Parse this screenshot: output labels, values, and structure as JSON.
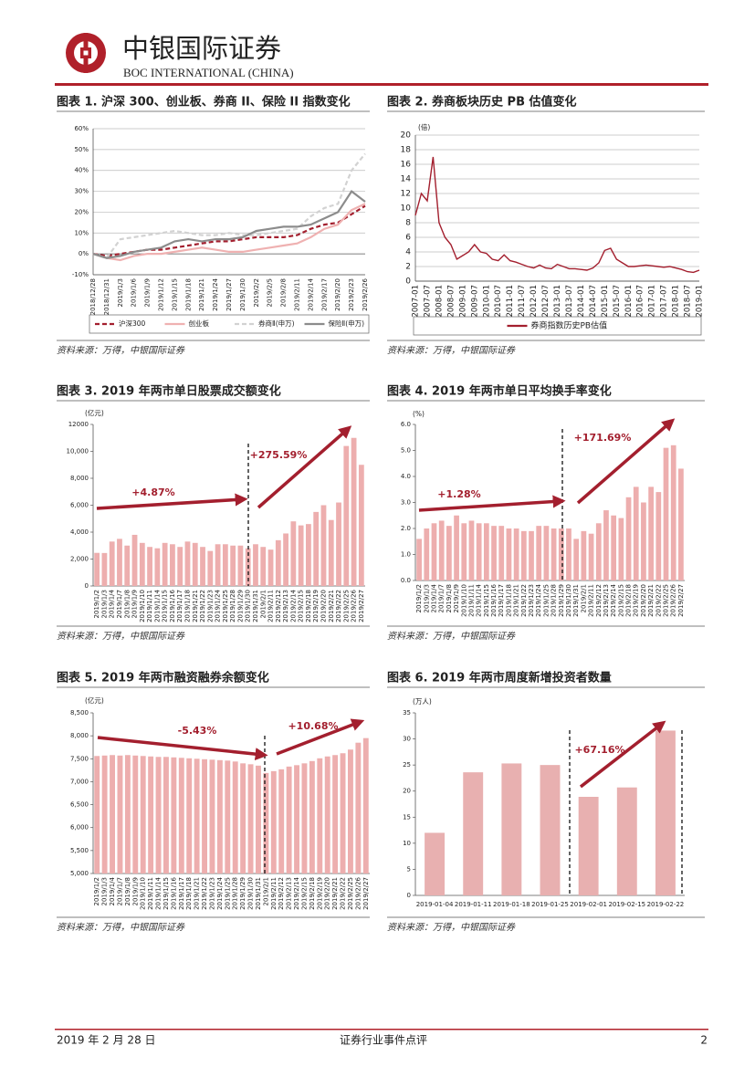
{
  "header": {
    "company": "中银国际证券",
    "company_en": "BOC INTERNATIONAL (CHINA)"
  },
  "chart_data": [
    {
      "type": "line",
      "caption": "图表 1. 沪深 300、创业板、券商 II、保险 II 指数变化",
      "source": "资料来源：万得，中银国际证券",
      "categories": [
        "2018/12/28",
        "2018/12/31",
        "2019/1/3",
        "2019/1/6",
        "2019/1/9",
        "2019/1/12",
        "2019/1/15",
        "2019/1/18",
        "2019/1/21",
        "2019/1/24",
        "2019/1/27",
        "2019/1/30",
        "2019/2/2",
        "2019/2/5",
        "2019/2/8",
        "2019/2/11",
        "2019/2/14",
        "2019/2/17",
        "2019/2/20",
        "2019/2/23",
        "2019/2/26"
      ],
      "series": [
        {
          "name": "沪深300",
          "color": "#a31f2e",
          "line_style": "dashed",
          "values": [
            0,
            -1,
            0,
            1,
            2,
            2,
            3,
            4,
            5,
            6,
            6,
            7,
            8,
            8,
            8,
            9,
            12,
            14,
            15,
            19,
            23
          ]
        },
        {
          "name": "创业板",
          "color": "#efb1b1",
          "line_style": "solid",
          "values": [
            0,
            -2,
            -3,
            -1,
            0,
            0,
            1,
            2,
            3,
            2,
            1,
            1,
            2,
            3,
            4,
            5,
            8,
            12,
            14,
            21,
            24
          ]
        },
        {
          "name": "券商Ⅱ(申万)",
          "color": "#d2d2d2",
          "line_style": "dashed",
          "values": [
            0,
            -2,
            7,
            8,
            9,
            10,
            11,
            10,
            9,
            9,
            10,
            9,
            9,
            10,
            11,
            12,
            18,
            22,
            24,
            40,
            48
          ]
        },
        {
          "name": "保险Ⅱ(申万)",
          "color": "#8c8c8c",
          "line_style": "solid",
          "values": [
            0,
            -2,
            -1,
            1,
            2,
            3,
            6,
            7,
            6,
            7,
            7,
            8,
            11,
            12,
            13,
            13,
            14,
            17,
            20,
            30,
            25
          ]
        }
      ],
      "ylim": [
        -10,
        60
      ],
      "yticks": [
        {
          "value": -10,
          "label": "-10%"
        },
        {
          "value": 0,
          "label": "0%"
        },
        {
          "value": 10,
          "label": "10%"
        },
        {
          "value": 20,
          "label": "20%"
        },
        {
          "value": 30,
          "label": "30%"
        },
        {
          "value": 40,
          "label": "40%"
        },
        {
          "value": 50,
          "label": "50%"
        },
        {
          "value": 60,
          "label": "60%"
        }
      ],
      "grid": true,
      "legend": "bottom"
    },
    {
      "type": "line",
      "caption": "图表 2. 券商板块历史 PB 估值变化",
      "source": "资料来源：万得，中银国际证券",
      "unit": "(倍)",
      "categories": [
        "2007-01",
        null,
        "2007-07",
        null,
        "2008-01",
        null,
        "2008-07",
        null,
        "2009-01",
        null,
        "2009-07",
        null,
        "2010-01",
        null,
        "2010-07",
        null,
        "2011-01",
        null,
        "2011-07",
        null,
        "2012-01",
        null,
        "2012-07",
        null,
        "2013-01",
        null,
        "2013-07",
        null,
        "2014-01",
        null,
        "2014-07",
        null,
        "2015-01",
        null,
        "2015-07",
        null,
        "2016-01",
        null,
        "2016-07",
        null,
        "2017-01",
        null,
        "2017-07",
        null,
        "2018-01",
        null,
        "2018-07",
        null,
        "2019-01"
      ],
      "series": [
        {
          "name": "券商指数历史PB估值",
          "color": "#a31f2e",
          "line_style": "solid",
          "values": [
            9,
            12,
            11,
            17,
            8,
            6,
            5,
            3,
            3.5,
            4,
            5,
            4,
            3.8,
            3,
            2.8,
            3.6,
            2.8,
            2.6,
            2.3,
            2,
            1.8,
            2.2,
            1.8,
            1.7,
            2.3,
            2,
            1.7,
            1.7,
            1.6,
            1.5,
            1.8,
            2.5,
            4.2,
            4.5,
            3,
            2.5,
            2,
            2,
            2.1,
            2.2,
            2.1,
            2,
            1.9,
            2,
            1.8,
            1.6,
            1.3,
            1.2,
            1.5
          ]
        }
      ],
      "ylim": [
        0,
        20
      ],
      "yticks": [
        0,
        2,
        4,
        6,
        8,
        10,
        12,
        14,
        16,
        18,
        20
      ],
      "grid": true,
      "legend": "bottom"
    },
    {
      "type": "bar",
      "caption": "图表 3. 2019 年两市单日股票成交额变化",
      "source": "资料来源：万得，中银国际证券",
      "unit": "(亿元)",
      "categories": [
        "2019/1/2",
        "2019/1/3",
        "2019/1/4",
        "2019/1/7",
        "2019/1/8",
        "2019/1/9",
        "2019/1/10",
        "2019/1/11",
        "2019/1/14",
        "2019/1/15",
        "2019/1/16",
        "2019/1/17",
        "2019/1/18",
        "2019/1/21",
        "2019/1/22",
        "2019/1/23",
        "2019/1/24",
        "2019/1/25",
        "2019/1/28",
        "2019/1/29",
        "2019/1/30",
        "2019/1/31",
        "2019/2/1",
        "2019/2/11",
        "2019/2/12",
        "2019/2/13",
        "2019/2/14",
        "2019/2/15",
        "2019/2/18",
        "2019/2/19",
        "2019/2/20",
        "2019/2/21",
        "2019/2/22",
        "2019/2/25",
        "2019/2/26",
        "2019/2/27"
      ],
      "values": [
        2460,
        2450,
        3300,
        3500,
        3000,
        3800,
        3200,
        2900,
        2800,
        3200,
        3100,
        2900,
        3300,
        3200,
        2900,
        2600,
        3100,
        3100,
        3000,
        3000,
        2800,
        3100,
        2900,
        2700,
        3400,
        3900,
        4800,
        4500,
        4600,
        5500,
        6000,
        4900,
        6200,
        10400,
        11000,
        9000
      ],
      "color": "#edaeae",
      "ylim": [
        0,
        12000
      ],
      "yticks": [
        0,
        {
          "value": 2000,
          "label": "2,000"
        },
        {
          "value": 4000,
          "label": "4,000"
        },
        {
          "value": 6000,
          "label": "6,000"
        },
        {
          "value": 8000,
          "label": "8,000"
        },
        {
          "value": 10000,
          "label": "10,000"
        },
        12000
      ],
      "grid": false,
      "annotations": [
        "+4.87%",
        "+275.59%"
      ]
    },
    {
      "type": "bar",
      "caption": "图表 4. 2019 年两市单日平均换手率变化",
      "source": "资料来源：万得，中银国际证券",
      "unit": "(%)",
      "categories": [
        "2019/1/2",
        "2019/1/3",
        "2019/1/4",
        "2019/1/7",
        "2019/1/8",
        "2019/1/9",
        "2019/1/10",
        "2019/1/11",
        "2019/1/14",
        "2019/1/15",
        "2019/1/16",
        "2019/1/17",
        "2019/1/18",
        "2019/1/21",
        "2019/1/22",
        "2019/1/23",
        "2019/1/24",
        "2019/1/25",
        "2019/1/28",
        "2019/1/29",
        "2019/1/30",
        "2019/1/31",
        "2019/2/1",
        "2019/2/11",
        "2019/2/12",
        "2019/2/13",
        "2019/2/14",
        "2019/2/15",
        "2019/2/18",
        "2019/2/19",
        "2019/2/20",
        "2019/2/21",
        "2019/2/22",
        "2019/2/25",
        "2019/2/26",
        "2019/2/27"
      ],
      "values": [
        1.6,
        2.0,
        2.2,
        2.3,
        2.1,
        2.5,
        2.2,
        2.3,
        2.2,
        2.2,
        2.1,
        2.1,
        2.0,
        2.0,
        1.9,
        1.9,
        2.1,
        2.1,
        2.0,
        2.0,
        2.0,
        1.6,
        1.9,
        1.8,
        2.2,
        2.7,
        2.5,
        2.4,
        3.2,
        3.6,
        3.0,
        3.6,
        3.4,
        5.1,
        5.2,
        4.3
      ],
      "color": "#edaeae",
      "ylim": [
        0,
        6
      ],
      "yticks": [
        {
          "value": 0,
          "label": "0.0"
        },
        {
          "value": 1,
          "label": "1.0"
        },
        {
          "value": 2,
          "label": "2.0"
        },
        {
          "value": 3,
          "label": "3.0"
        },
        {
          "value": 4,
          "label": "4.0"
        },
        {
          "value": 5,
          "label": "5.0"
        },
        {
          "value": 6,
          "label": "6.0"
        }
      ],
      "grid": false,
      "annotations": [
        "+1.28%",
        "+171.69%"
      ]
    },
    {
      "type": "bar",
      "caption": "图表 5. 2019 年两市融资融券余额变化",
      "source": "资料来源：万得，中银国际证券",
      "unit": "(亿元)",
      "categories": [
        "2019/1/2",
        "2019/1/3",
        "2019/1/4",
        "2019/1/7",
        "2019/1/8",
        "2019/1/9",
        "2019/1/10",
        "2019/1/11",
        "2019/1/14",
        "2019/1/15",
        "2019/1/16",
        "2019/1/17",
        "2019/1/18",
        "2019/1/21",
        "2019/1/22",
        "2019/1/23",
        "2019/1/24",
        "2019/1/25",
        "2019/1/28",
        "2019/1/29",
        "2019/1/30",
        "2019/1/31",
        "2019/2/1",
        "2019/2/11",
        "2019/2/12",
        "2019/2/13",
        "2019/2/14",
        "2019/2/15",
        "2019/2/18",
        "2019/2/19",
        "2019/2/20",
        "2019/2/21",
        "2019/2/22",
        "2019/2/25",
        "2019/2/26",
        "2019/2/27"
      ],
      "values": [
        7560,
        7570,
        7580,
        7570,
        7580,
        7570,
        7560,
        7550,
        7540,
        7540,
        7530,
        7520,
        7510,
        7500,
        7490,
        7480,
        7470,
        7460,
        7440,
        7400,
        7380,
        7350,
        7190,
        7230,
        7270,
        7330,
        7360,
        7400,
        7450,
        7510,
        7550,
        7580,
        7620,
        7700,
        7850,
        7950
      ],
      "color": "#edaeae",
      "ylim": [
        5000,
        8500
      ],
      "yticks": [
        {
          "value": 5000,
          "label": "5,000"
        },
        {
          "value": 5500,
          "label": "5,500"
        },
        {
          "value": 6000,
          "label": "6,000"
        },
        {
          "value": 6500,
          "label": "6,500"
        },
        {
          "value": 7000,
          "label": "7,000"
        },
        {
          "value": 7500,
          "label": "7,500"
        },
        {
          "value": 8000,
          "label": "8,000"
        },
        {
          "value": 8500,
          "label": "8,500"
        }
      ],
      "grid": false,
      "annotations": [
        "-5.43%",
        "+10.68%"
      ]
    },
    {
      "type": "bar",
      "caption": "图表 6. 2019 年两市周度新增投资者数量",
      "source": "资料来源：万得，中银国际证券",
      "unit": "(万人)",
      "categories": [
        "2019-01-04",
        "2019-01-11",
        "2019-01-18",
        "2019-01-25",
        "2019-02-01",
        "2019-02-15",
        "2019-02-22"
      ],
      "values": [
        12.0,
        23.6,
        25.3,
        25.0,
        18.9,
        20.7,
        31.6
      ],
      "color": "#e8b0b0",
      "ylim": [
        0,
        35
      ],
      "yticks": [
        0,
        5,
        10,
        15,
        20,
        25,
        30,
        35
      ],
      "grid": false,
      "annotations": [
        "+67.16%"
      ]
    }
  ],
  "footer": {
    "date": "2019 年 2 月 28 日",
    "report_type": "证券行业事件点评",
    "page": "2"
  }
}
